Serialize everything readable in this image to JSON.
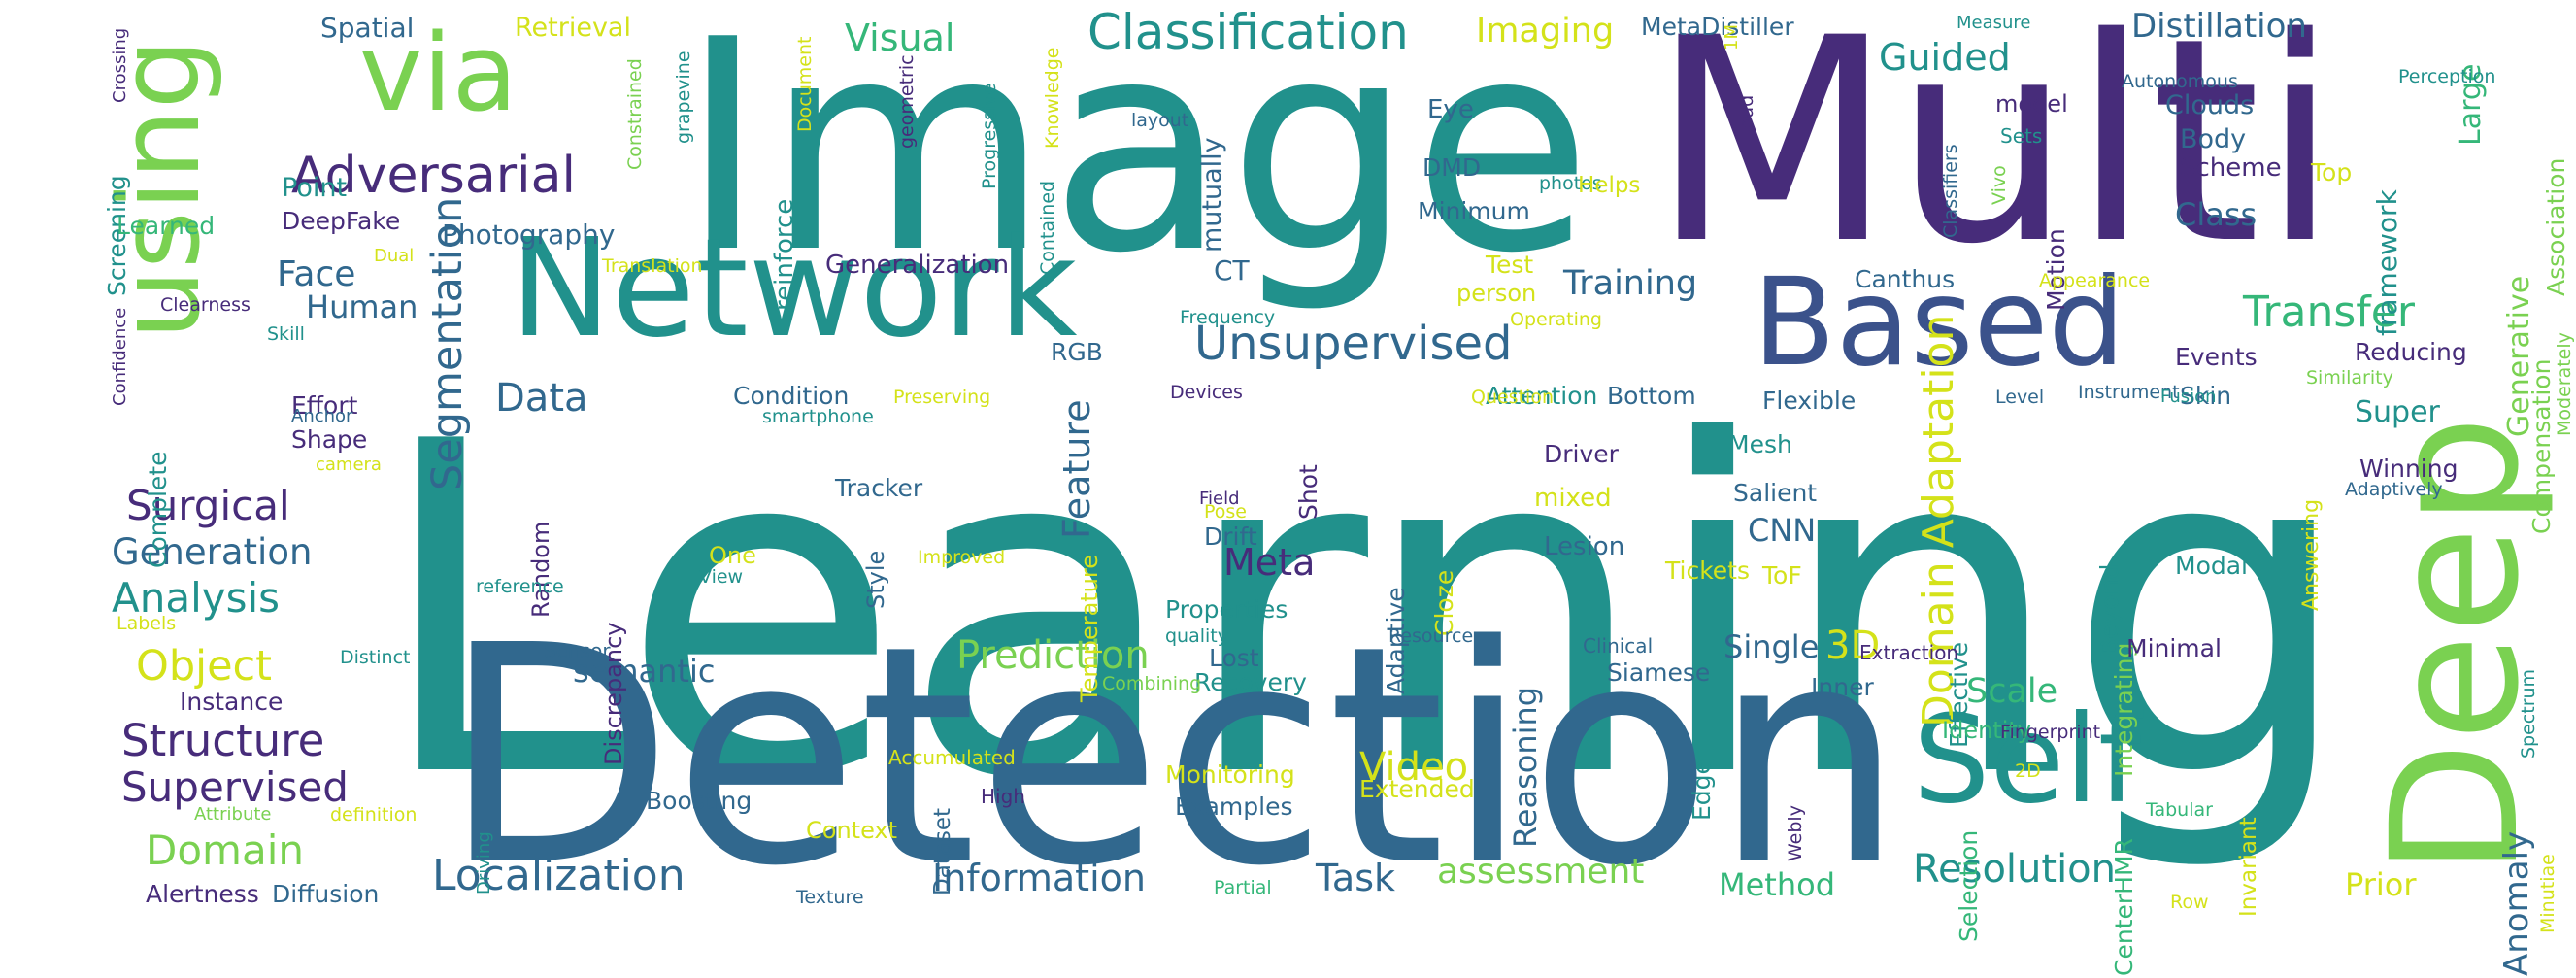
{
  "title": "Word cloud",
  "colors": {
    "background": "#ffffff",
    "dark_purple": "#472c7a",
    "dark_blue": "#31688e",
    "teal": "#21918c",
    "green": "#35b779",
    "light_green": "#7ad151",
    "yellow": "#d4e21a"
  },
  "words": [
    {
      "text": "Learning",
      "color": "#21918c"
    },
    {
      "text": "Detection",
      "color": "#31688e"
    },
    {
      "text": "Image",
      "color": "#21918c"
    },
    {
      "text": "Multi",
      "color": "#472c7a"
    },
    {
      "text": "Deep",
      "color": "#7ad151"
    },
    {
      "text": "Network",
      "color": "#21918c"
    },
    {
      "text": "Based",
      "color": "#3b528b"
    },
    {
      "text": "Self",
      "color": "#21918c"
    },
    {
      "text": "using",
      "color": "#7ad151"
    },
    {
      "text": "via",
      "color": "#7ad151"
    },
    {
      "text": "Adversarial",
      "color": "#472c7a"
    },
    {
      "text": "Classification",
      "color": "#21918c"
    },
    {
      "text": "Unsupervised",
      "color": "#31688e"
    },
    {
      "text": "Transfer",
      "color": "#35b779"
    },
    {
      "text": "Domain Adaptation",
      "color": "#d4e21a"
    },
    {
      "text": "Segmentation",
      "color": "#31688e"
    },
    {
      "text": "Localization",
      "color": "#31688e"
    },
    {
      "text": "Structure",
      "color": "#472c7a"
    },
    {
      "text": "Object",
      "color": "#d4e21a"
    },
    {
      "text": "Analysis",
      "color": "#21918c"
    },
    {
      "text": "Surgical",
      "color": "#472c7a"
    },
    {
      "text": "Supervised",
      "color": "#472c7a"
    },
    {
      "text": "Domain",
      "color": "#7ad151"
    },
    {
      "text": "Data",
      "color": "#31688e"
    },
    {
      "text": "Generation",
      "color": "#31688e"
    },
    {
      "text": "Information",
      "color": "#31688e"
    },
    {
      "text": "Resolution",
      "color": "#21918c"
    },
    {
      "text": "Task",
      "color": "#31688e"
    },
    {
      "text": "Feature",
      "color": "#31688e"
    },
    {
      "text": "Prediction",
      "color": "#7ad151"
    },
    {
      "text": "Meta",
      "color": "#472c7a"
    },
    {
      "text": "Guided",
      "color": "#21918c"
    },
    {
      "text": "Distillation",
      "color": "#31688e"
    },
    {
      "text": "Video",
      "color": "#d4e21a"
    },
    {
      "text": "Training",
      "color": "#31688e"
    },
    {
      "text": "Visual",
      "color": "#35b779"
    },
    {
      "text": "Imaging",
      "color": "#d4e21a"
    },
    {
      "text": "Anomaly",
      "color": "#31688e"
    },
    {
      "text": "Generative",
      "color": "#7ad151"
    },
    {
      "text": "3D",
      "color": "#d4e21a"
    },
    {
      "text": "Scale",
      "color": "#35b779"
    },
    {
      "text": "Face",
      "color": "#31688e"
    },
    {
      "text": "Human",
      "color": "#31688e"
    },
    {
      "text": "Reasoning",
      "color": "#31688e"
    },
    {
      "text": "assessment",
      "color": "#7ad151"
    },
    {
      "text": "Method",
      "color": "#35b779"
    },
    {
      "text": "Prior",
      "color": "#d4e21a"
    },
    {
      "text": "Class",
      "color": "#31688e"
    },
    {
      "text": "framework",
      "color": "#21918c"
    },
    {
      "text": "CNN",
      "color": "#31688e"
    },
    {
      "text": "Single",
      "color": "#31688e"
    },
    {
      "text": "semantic",
      "color": "#31688e"
    },
    {
      "text": "Super",
      "color": "#21918c"
    },
    {
      "text": "Large",
      "color": "#35b779"
    },
    {
      "text": "Photography",
      "color": "#31688e"
    },
    {
      "text": "Spatial",
      "color": "#31688e"
    },
    {
      "text": "Retrieval",
      "color": "#d4e21a"
    },
    {
      "text": "MetaDistiller",
      "color": "#31688e"
    },
    {
      "text": "Clouds",
      "color": "#31688e"
    },
    {
      "text": "Body",
      "color": "#31688e"
    },
    {
      "text": "Scheme",
      "color": "#472c7a"
    },
    {
      "text": "Top",
      "color": "#d4e21a"
    },
    {
      "text": "Association",
      "color": "#7ad151"
    },
    {
      "text": "Compensation",
      "color": "#7ad151"
    },
    {
      "text": "Screening",
      "color": "#21918c"
    },
    {
      "text": "Point",
      "color": "#21918c"
    },
    {
      "text": "Learned",
      "color": "#35b779"
    },
    {
      "text": "DeepFake",
      "color": "#472c7a"
    },
    {
      "text": "Generalization",
      "color": "#472c7a"
    },
    {
      "text": "reinforce",
      "color": "#21918c"
    },
    {
      "text": "mutually",
      "color": "#31688e"
    },
    {
      "text": "Eye",
      "color": "#31688e"
    },
    {
      "text": "DMD",
      "color": "#31688e"
    },
    {
      "text": "Minimum",
      "color": "#31688e"
    },
    {
      "text": "CT",
      "color": "#31688e"
    },
    {
      "text": "Test",
      "color": "#d4e21a"
    },
    {
      "text": "person",
      "color": "#d4e21a"
    },
    {
      "text": "Canthus",
      "color": "#31688e"
    },
    {
      "text": "Motion",
      "color": "#472c7a"
    },
    {
      "text": "Events",
      "color": "#472c7a"
    },
    {
      "text": "Reducing",
      "color": "#472c7a"
    },
    {
      "text": "Skin",
      "color": "#31688e"
    },
    {
      "text": "Winning",
      "color": "#472c7a"
    },
    {
      "text": "Condition",
      "color": "#31688e"
    },
    {
      "text": "RGB",
      "color": "#31688e"
    },
    {
      "text": "Attention",
      "color": "#21918c"
    },
    {
      "text": "Bottom",
      "color": "#31688e"
    },
    {
      "text": "Flexible",
      "color": "#31688e"
    },
    {
      "text": "Mesh",
      "color": "#21918c"
    },
    {
      "text": "Salient",
      "color": "#31688e"
    },
    {
      "text": "Driver",
      "color": "#472c7a"
    },
    {
      "text": "mixed",
      "color": "#d4e21a"
    },
    {
      "text": "Lesion",
      "color": "#31688e"
    },
    {
      "text": "Tickets",
      "color": "#d4e21a"
    },
    {
      "text": "ToF",
      "color": "#d4e21a"
    },
    {
      "text": "Effort",
      "color": "#472c7a"
    },
    {
      "text": "Shape",
      "color": "#472c7a"
    },
    {
      "text": "Complete",
      "color": "#21918c"
    },
    {
      "text": "Random",
      "color": "#472c7a"
    },
    {
      "text": "Discrepancy",
      "color": "#472c7a"
    },
    {
      "text": "Tracker",
      "color": "#31688e"
    },
    {
      "text": "Shot",
      "color": "#472c7a"
    },
    {
      "text": "Drift",
      "color": "#31688e"
    },
    {
      "text": "Adaptive",
      "color": "#31688e"
    },
    {
      "text": "Cloze",
      "color": "#d4e21a"
    },
    {
      "text": "Temperature",
      "color": "#d4e21a"
    },
    {
      "text": "One",
      "color": "#d4e21a"
    },
    {
      "text": "Style",
      "color": "#31688e"
    },
    {
      "text": "Properties",
      "color": "#21918c"
    },
    {
      "text": "Lost",
      "color": "#31688e"
    },
    {
      "text": "Recovery",
      "color": "#21918c"
    },
    {
      "text": "Siamese",
      "color": "#31688e"
    },
    {
      "text": "Inner",
      "color": "#31688e"
    },
    {
      "text": "Effective",
      "color": "#21918c"
    },
    {
      "text": "Integrating",
      "color": "#7ad151"
    },
    {
      "text": "Beyond",
      "color": "#21918c"
    },
    {
      "text": "Modal",
      "color": "#21918c"
    },
    {
      "text": "Minimal",
      "color": "#472c7a"
    },
    {
      "text": "Identity",
      "color": "#35b779"
    },
    {
      "text": "Edge",
      "color": "#21918c"
    },
    {
      "text": "Selection",
      "color": "#35b779"
    },
    {
      "text": "CenterHMR",
      "color": "#35b779"
    },
    {
      "text": "Invariant",
      "color": "#d4e21a"
    },
    {
      "text": "Instance",
      "color": "#472c7a"
    },
    {
      "text": "Boosting",
      "color": "#31688e"
    },
    {
      "text": "Examples",
      "color": "#31688e"
    },
    {
      "text": "Extended",
      "color": "#d4e21a"
    },
    {
      "text": "Monitoring",
      "color": "#d4e21a"
    },
    {
      "text": "Dataset",
      "color": "#31688e"
    },
    {
      "text": "Context",
      "color": "#d4e21a"
    },
    {
      "text": "Alertness",
      "color": "#472c7a"
    },
    {
      "text": "Diffusion",
      "color": "#31688e"
    },
    {
      "text": "High",
      "color": "#472c7a"
    },
    {
      "text": "Accumulated",
      "color": "#d4e21a"
    },
    {
      "text": "Driving",
      "color": "#21918c"
    },
    {
      "text": "definition",
      "color": "#d4e21a"
    },
    {
      "text": "Attribute",
      "color": "#7ad151"
    },
    {
      "text": "Texture",
      "color": "#31688e"
    },
    {
      "text": "Partial",
      "color": "#35b779"
    },
    {
      "text": "Row",
      "color": "#d4e21a"
    },
    {
      "text": "Tabular",
      "color": "#35b779"
    },
    {
      "text": "2D",
      "color": "#d4e21a"
    },
    {
      "text": "Fingerprint",
      "color": "#472c7a"
    },
    {
      "text": "Webly",
      "color": "#472c7a"
    },
    {
      "text": "Extraction",
      "color": "#472c7a"
    },
    {
      "text": "Clinical",
      "color": "#31688e"
    },
    {
      "text": "quality",
      "color": "#21918c"
    },
    {
      "text": "Resource",
      "color": "#31688e"
    },
    {
      "text": "Combining",
      "color": "#7ad151"
    },
    {
      "text": "Sensor",
      "color": "#31688e"
    },
    {
      "text": "Distinct",
      "color": "#21918c"
    },
    {
      "text": "Labels",
      "color": "#d4e21a"
    },
    {
      "text": "reference",
      "color": "#21918c"
    },
    {
      "text": "View",
      "color": "#21918c"
    },
    {
      "text": "Improved",
      "color": "#d4e21a"
    },
    {
      "text": "Field",
      "color": "#472c7a"
    },
    {
      "text": "Pose",
      "color": "#d4e21a"
    },
    {
      "text": "camera",
      "color": "#d4e21a"
    },
    {
      "text": "Anchor",
      "color": "#31688e"
    },
    {
      "text": "smartphone",
      "color": "#21918c"
    },
    {
      "text": "Preserving",
      "color": "#d4e21a"
    },
    {
      "text": "Devices",
      "color": "#472c7a"
    },
    {
      "text": "Question",
      "color": "#d4e21a"
    },
    {
      "text": "Level",
      "color": "#31688e"
    },
    {
      "text": "Instrument",
      "color": "#31688e"
    },
    {
      "text": "Fusion",
      "color": "#21918c"
    },
    {
      "text": "Similarity",
      "color": "#7ad151"
    },
    {
      "text": "Moderately",
      "color": "#7ad151"
    },
    {
      "text": "Answering",
      "color": "#d4e21a"
    },
    {
      "text": "Adaptively",
      "color": "#31688e"
    },
    {
      "text": "Spectrum",
      "color": "#21918c"
    },
    {
      "text": "Minutiae",
      "color": "#d4e21a"
    },
    {
      "text": "Operating",
      "color": "#d4e21a"
    },
    {
      "text": "Frequency",
      "color": "#21918c"
    },
    {
      "text": "Appearance",
      "color": "#d4e21a"
    },
    {
      "text": "Vivo",
      "color": "#7ad151"
    },
    {
      "text": "Classifiers",
      "color": "#31688e"
    },
    {
      "text": "bud",
      "color": "#472c7a"
    },
    {
      "text": "1M",
      "color": "#d4e21a"
    },
    {
      "text": "photos",
      "color": "#21918c"
    },
    {
      "text": "Helps",
      "color": "#d4e21a"
    },
    {
      "text": "Sets",
      "color": "#21918c"
    },
    {
      "text": "model",
      "color": "#472c7a"
    },
    {
      "text": "layout",
      "color": "#31688e"
    },
    {
      "text": "Measure",
      "color": "#21918c"
    },
    {
      "text": "Perception",
      "color": "#21918c"
    },
    {
      "text": "Autonomous",
      "color": "#31688e"
    },
    {
      "text": "Knowledge",
      "color": "#d4e21a"
    },
    {
      "text": "Progressive",
      "color": "#21918c"
    },
    {
      "text": "geometric",
      "color": "#472c7a"
    },
    {
      "text": "Document",
      "color": "#d4e21a"
    },
    {
      "text": "grapevine",
      "color": "#21918c"
    },
    {
      "text": "Constrained",
      "color": "#7ad151"
    },
    {
      "text": "Contained",
      "color": "#21918c"
    },
    {
      "text": "Crossing",
      "color": "#472c7a"
    },
    {
      "text": "Confidence",
      "color": "#472c7a"
    },
    {
      "text": "Skill",
      "color": "#21918c"
    },
    {
      "text": "Clearness",
      "color": "#472c7a"
    },
    {
      "text": "Dual",
      "color": "#d4e21a"
    },
    {
      "text": "Translation",
      "color": "#d4e21a"
    }
  ]
}
